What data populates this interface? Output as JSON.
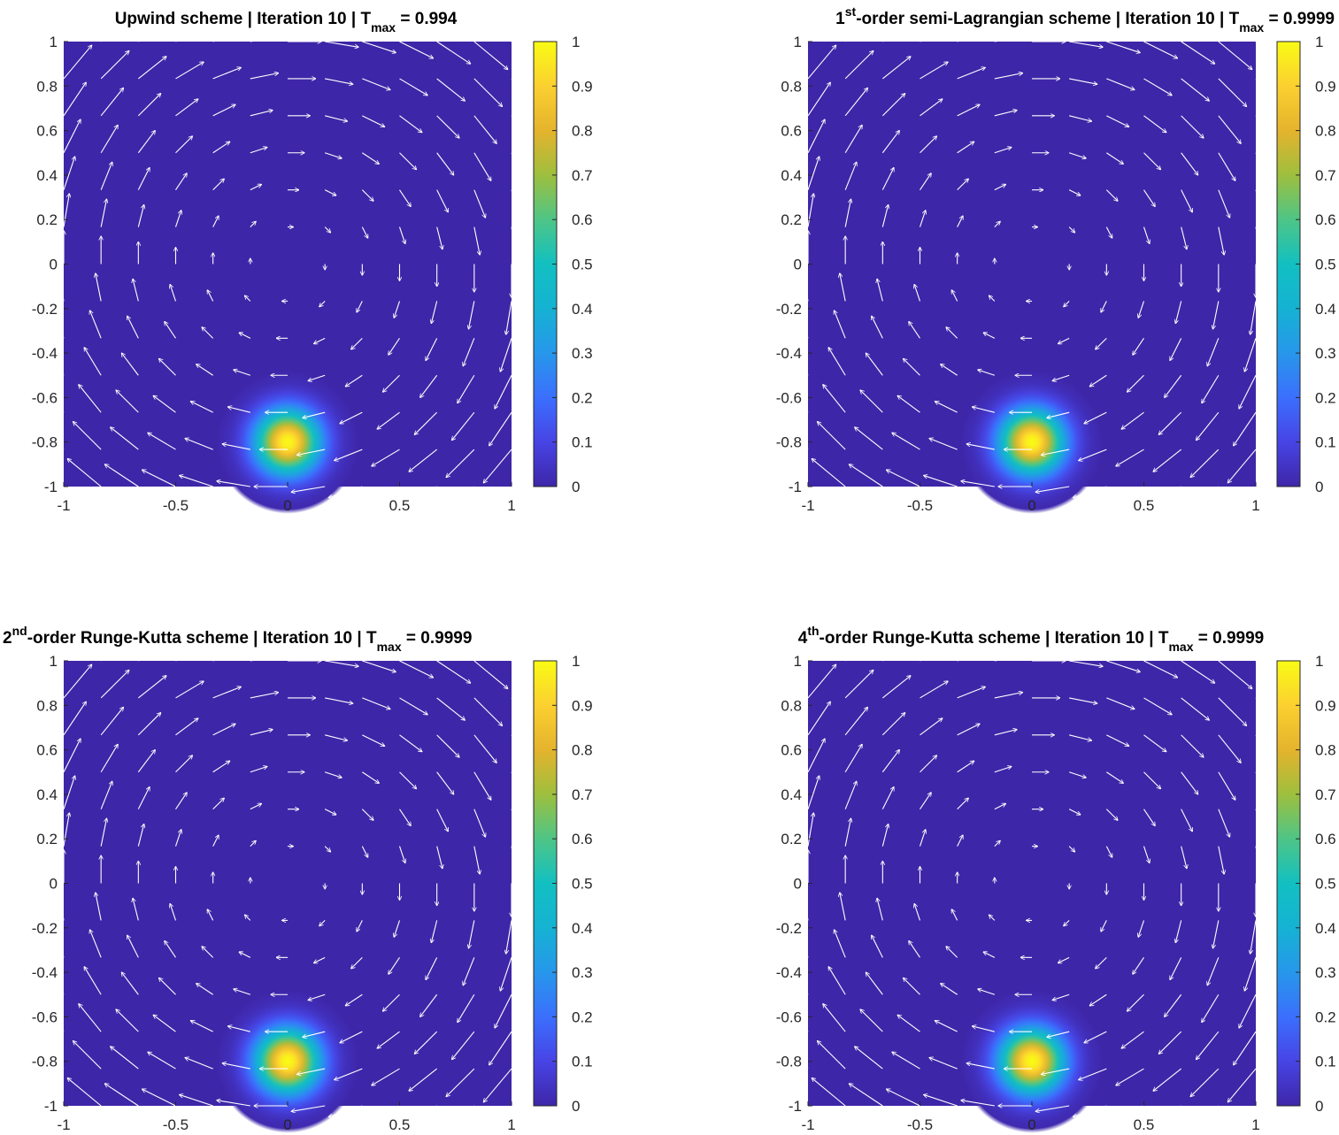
{
  "colors": {
    "background": "#3e26a8",
    "arrow": "#ffffff",
    "axis": "#262626"
  },
  "chart_data": [
    {
      "type": "heatmap",
      "title_parts": [
        {
          "text": "Upwind scheme | Iteration 10 | T"
        },
        {
          "text": "max",
          "role": "sub"
        },
        {
          "text": " = 0.994"
        }
      ],
      "xlim": [
        -1,
        1
      ],
      "ylim": [
        -1,
        1
      ],
      "xticks": [
        "-1",
        "-0.5",
        "0",
        "0.5",
        "1"
      ],
      "yticks": [
        "1",
        "0.8",
        "0.6",
        "0.4",
        "0.2",
        "0",
        "-0.2",
        "-0.4",
        "-0.6",
        "-0.8",
        "-1"
      ],
      "field": {
        "center": [
          0,
          -0.8
        ],
        "peak": 0.994,
        "sigma": 0.1
      },
      "quiver": {
        "field": "solid-body rotation, clockwise",
        "grid": 13,
        "color": "#ffffff"
      },
      "colorbar": {
        "range": [
          0,
          1
        ],
        "ticks": [
          "1",
          "0.9",
          "0.8",
          "0.7",
          "0.6",
          "0.5",
          "0.4",
          "0.3",
          "0.2",
          "0.1",
          "0"
        ],
        "colormap": "parula"
      }
    },
    {
      "type": "heatmap",
      "title_parts": [
        {
          "text": "1"
        },
        {
          "text": "st",
          "role": "sup"
        },
        {
          "text": "-order semi-Lagrangian scheme | Iteration 10 | T"
        },
        {
          "text": "max",
          "role": "sub"
        },
        {
          "text": " = 0.9999"
        }
      ],
      "xlim": [
        -1,
        1
      ],
      "ylim": [
        -1,
        1
      ],
      "xticks": [
        "-1",
        "-0.5",
        "0",
        "0.5",
        "1"
      ],
      "yticks": [
        "1",
        "0.8",
        "0.6",
        "0.4",
        "0.2",
        "0",
        "-0.2",
        "-0.4",
        "-0.6",
        "-0.8",
        "-1"
      ],
      "field": {
        "center": [
          0,
          -0.8
        ],
        "peak": 0.9999,
        "sigma": 0.1
      },
      "quiver": {
        "field": "solid-body rotation, clockwise",
        "grid": 13,
        "color": "#ffffff"
      },
      "colorbar": {
        "range": [
          0,
          1
        ],
        "ticks": [
          "1",
          "0.9",
          "0.8",
          "0.7",
          "0.6",
          "0.5",
          "0.4",
          "0.3",
          "0.2",
          "0.1",
          "0"
        ],
        "colormap": "parula"
      }
    },
    {
      "type": "heatmap",
      "title_parts": [
        {
          "text": "2"
        },
        {
          "text": "nd",
          "role": "sup"
        },
        {
          "text": "-order Runge-Kutta scheme | Iteration 10 | T"
        },
        {
          "text": "max",
          "role": "sub"
        },
        {
          "text": " = 0.9999"
        }
      ],
      "xlim": [
        -1,
        1
      ],
      "ylim": [
        -1,
        1
      ],
      "xticks": [
        "-1",
        "-0.5",
        "0",
        "0.5",
        "1"
      ],
      "yticks": [
        "1",
        "0.8",
        "0.6",
        "0.4",
        "0.2",
        "0",
        "-0.2",
        "-0.4",
        "-0.6",
        "-0.8",
        "-1"
      ],
      "field": {
        "center": [
          0,
          -0.8
        ],
        "peak": 0.9999,
        "sigma": 0.1
      },
      "quiver": {
        "field": "solid-body rotation, clockwise",
        "grid": 13,
        "color": "#ffffff"
      },
      "colorbar": {
        "range": [
          0,
          1
        ],
        "ticks": [
          "1",
          "0.9",
          "0.8",
          "0.7",
          "0.6",
          "0.5",
          "0.4",
          "0.3",
          "0.2",
          "0.1",
          "0"
        ],
        "colormap": "parula"
      }
    },
    {
      "type": "heatmap",
      "title_parts": [
        {
          "text": "4"
        },
        {
          "text": "th",
          "role": "sup"
        },
        {
          "text": "-order Runge-Kutta scheme | Iteration 10 | T"
        },
        {
          "text": "max",
          "role": "sub"
        },
        {
          "text": " = 0.9999"
        }
      ],
      "xlim": [
        -1,
        1
      ],
      "ylim": [
        -1,
        1
      ],
      "xticks": [
        "-1",
        "-0.5",
        "0",
        "0.5",
        "1"
      ],
      "yticks": [
        "1",
        "0.8",
        "0.6",
        "0.4",
        "0.2",
        "0",
        "-0.2",
        "-0.4",
        "-0.6",
        "-0.8",
        "-1"
      ],
      "field": {
        "center": [
          0,
          -0.8
        ],
        "peak": 0.9999,
        "sigma": 0.1
      },
      "quiver": {
        "field": "solid-body rotation, clockwise",
        "grid": 13,
        "color": "#ffffff"
      },
      "colorbar": {
        "range": [
          0,
          1
        ],
        "ticks": [
          "1",
          "0.9",
          "0.8",
          "0.7",
          "0.6",
          "0.5",
          "0.4",
          "0.3",
          "0.2",
          "0.1",
          "0"
        ],
        "colormap": "parula"
      }
    }
  ]
}
